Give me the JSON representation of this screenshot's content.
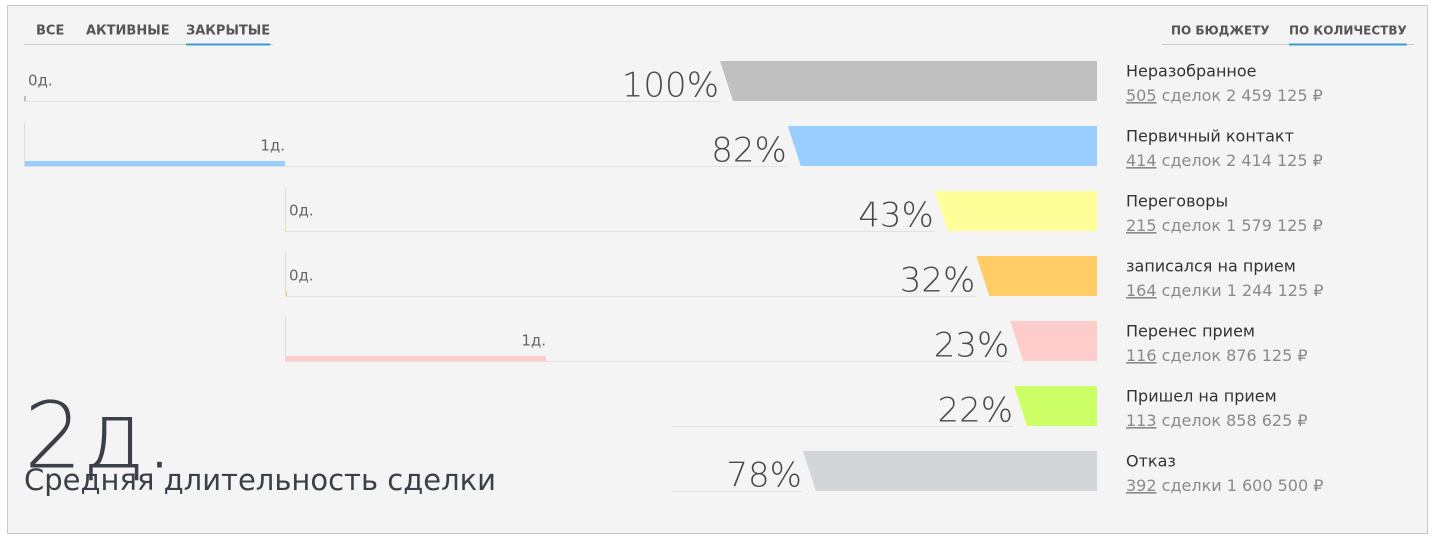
{
  "tabs": [
    "ВСЕ",
    "АКТИВНЫЕ",
    "ЗАКРЫТЫЕ"
  ],
  "active_tab": 2,
  "sort_tabs": [
    "ПО БЮДЖЕТУ",
    "ПО КОЛИЧЕСТВУ"
  ],
  "active_sort": 1,
  "stages": [
    {
      "name": "Неразобранное",
      "percent": 100,
      "percent_label": "100%",
      "deals": "505",
      "details": "сделок 2 459 125 ₽",
      "color": "#c0c0c0",
      "duration": 0,
      "duration_label": "0д."
    },
    {
      "name": "Первичный контакт",
      "percent": 82,
      "percent_label": "82%",
      "deals": "414",
      "details": "сделок 2 414 125 ₽",
      "color": "#99ccff",
      "duration": 1,
      "duration_label": "1д."
    },
    {
      "name": "Переговоры",
      "percent": 43,
      "percent_label": "43%",
      "deals": "215",
      "details": "сделок 1 579 125 ₽",
      "color": "#ffff99",
      "duration": 0,
      "duration_label": "0д."
    },
    {
      "name": "записался на прием",
      "percent": 32,
      "percent_label": "32%",
      "deals": "164",
      "details": "сделки 1 244 125 ₽",
      "color": "#ffcc66",
      "duration": 0,
      "duration_label": "0д."
    },
    {
      "name": "Перенес прием",
      "percent": 23,
      "percent_label": "23%",
      "deals": "116",
      "details": "сделок 876 125 ₽",
      "color": "#ffcccc",
      "duration": 1,
      "duration_label": "1д."
    },
    {
      "name": "Пришел на прием",
      "percent": 22,
      "percent_label": "22%",
      "deals": "113",
      "details": "сделок 858 625 ₽",
      "color": "#ccff66",
      "duration": null,
      "duration_label": null
    },
    {
      "name": "Отказ",
      "percent": 78,
      "percent_label": "78%",
      "deals": "392",
      "details": "сделки 1 600 500 ₽",
      "color": "#d3d6d9",
      "duration": null,
      "duration_label": null
    }
  ],
  "summary": {
    "value": "2д.",
    "label": "Средняя длительность сделки"
  }
}
